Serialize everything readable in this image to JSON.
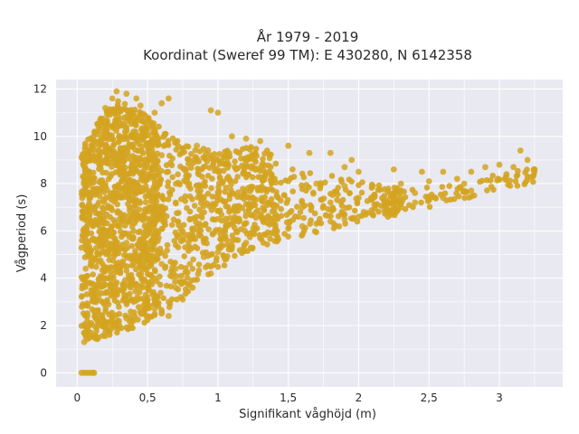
{
  "chart_data": {
    "type": "scatter",
    "title_line1": "År 1979 - 2019",
    "title_line2": "Koordinat (Sweref 99 TM): E 430280, N 6142358",
    "xlabel": "Signifikant våghöjd (m)",
    "ylabel": "Vågperiod (s)",
    "xlim": [
      -0.15,
      3.45
    ],
    "ylim": [
      -0.6,
      12.4
    ],
    "x_ticks": [
      0,
      0.5,
      1,
      1.5,
      2,
      2.5,
      3
    ],
    "x_tick_labels": [
      "0",
      "0,5",
      "1",
      "1,5",
      "2",
      "2,5",
      "3"
    ],
    "y_ticks": [
      0,
      2,
      4,
      6,
      8,
      10,
      12
    ],
    "y_tick_labels": [
      "0",
      "2",
      "4",
      "6",
      "8",
      "10",
      "12"
    ],
    "grid": true,
    "marker_color": "#d4a421",
    "background_color": "#e9e9f1",
    "points": [
      [
        0.03,
        0
      ],
      [
        0.05,
        0
      ],
      [
        0.07,
        0
      ],
      [
        0.09,
        0
      ],
      [
        0.11,
        0
      ],
      [
        0.12,
        0
      ],
      [
        0.05,
        1.3
      ],
      [
        0.08,
        1.6
      ],
      [
        0.1,
        2.1
      ],
      [
        0.12,
        2.6
      ],
      [
        0.15,
        3.2
      ],
      [
        0.06,
        4.4
      ],
      [
        0.07,
        5.5
      ],
      [
        0.05,
        6.8
      ],
      [
        0.04,
        8.3
      ],
      [
        0.06,
        9.0
      ],
      [
        0.15,
        1.5
      ],
      [
        0.2,
        1.7
      ],
      [
        0.25,
        1.9
      ],
      [
        0.3,
        2.0
      ],
      [
        0.4,
        2.2
      ],
      [
        0.5,
        2.4
      ],
      [
        0.6,
        2.5
      ],
      [
        0.65,
        2.4
      ],
      [
        0.15,
        10.5
      ],
      [
        0.2,
        11.2
      ],
      [
        0.25,
        11.6
      ],
      [
        0.28,
        11.9
      ],
      [
        0.35,
        11.8
      ],
      [
        0.42,
        11.6
      ],
      [
        0.45,
        11.3
      ],
      [
        0.55,
        11.0
      ],
      [
        0.6,
        11.4
      ],
      [
        0.65,
        11.6
      ],
      [
        0.95,
        11.1
      ],
      [
        1.0,
        11.0
      ],
      [
        0.2,
        9.0
      ],
      [
        0.3,
        9.8
      ],
      [
        0.4,
        10.2
      ],
      [
        0.5,
        9.6
      ],
      [
        0.6,
        9.2
      ],
      [
        0.75,
        9.4
      ],
      [
        0.85,
        9.6
      ],
      [
        1.1,
        10.0
      ],
      [
        1.2,
        9.9
      ],
      [
        1.3,
        9.8
      ],
      [
        1.5,
        9.6
      ],
      [
        1.65,
        9.3
      ],
      [
        1.8,
        9.3
      ],
      [
        1.9,
        8.7
      ],
      [
        1.95,
        9.0
      ],
      [
        2.0,
        8.5
      ],
      [
        0.2,
        8.0
      ],
      [
        0.35,
        7.8
      ],
      [
        0.5,
        7.5
      ],
      [
        0.7,
        7.2
      ],
      [
        0.9,
        7.3
      ],
      [
        1.1,
        7.6
      ],
      [
        1.3,
        7.8
      ],
      [
        1.5,
        8.1
      ],
      [
        1.7,
        8.0
      ],
      [
        1.9,
        7.9
      ],
      [
        2.1,
        7.9
      ],
      [
        2.3,
        8.0
      ],
      [
        2.5,
        8.1
      ],
      [
        2.7,
        8.2
      ],
      [
        2.8,
        8.5
      ],
      [
        2.9,
        8.7
      ],
      [
        3.0,
        8.8
      ],
      [
        3.1,
        8.7
      ],
      [
        3.15,
        9.4
      ],
      [
        3.2,
        9.0
      ],
      [
        3.25,
        8.6
      ],
      [
        2.75,
        8.0
      ],
      [
        2.6,
        8.5
      ],
      [
        2.45,
        8.5
      ],
      [
        2.25,
        8.6
      ],
      [
        2.2,
        7.2
      ],
      [
        0.2,
        6.0
      ],
      [
        0.35,
        5.5
      ],
      [
        0.5,
        5.0
      ],
      [
        0.6,
        4.6
      ],
      [
        0.7,
        4.4
      ],
      [
        0.8,
        4.6
      ],
      [
        0.9,
        4.9
      ],
      [
        1.0,
        5.1
      ],
      [
        1.1,
        5.3
      ],
      [
        1.2,
        5.5
      ],
      [
        1.3,
        5.7
      ],
      [
        1.4,
        5.9
      ],
      [
        1.5,
        6.1
      ],
      [
        1.6,
        6.2
      ],
      [
        1.7,
        6.3
      ],
      [
        1.8,
        6.4
      ],
      [
        1.9,
        6.5
      ],
      [
        2.0,
        6.6
      ],
      [
        2.1,
        6.7
      ],
      [
        2.2,
        6.9
      ],
      [
        2.3,
        7.0
      ],
      [
        2.4,
        7.2
      ],
      [
        2.5,
        7.3
      ],
      [
        2.6,
        7.4
      ],
      [
        0.2,
        4.0
      ],
      [
        0.3,
        3.5
      ],
      [
        0.4,
        3.0
      ],
      [
        0.5,
        2.8
      ],
      [
        0.55,
        2.7
      ],
      [
        0.45,
        2.6
      ],
      [
        0.35,
        2.3
      ],
      [
        0.25,
        2.0
      ],
      [
        0.15,
        2.5
      ],
      [
        0.1,
        3.5
      ],
      [
        0.7,
        3.6
      ],
      [
        0.75,
        3.1
      ],
      [
        0.8,
        3.7
      ],
      [
        0.95,
        4.2
      ],
      [
        1.05,
        4.8
      ],
      [
        0.65,
        3.0
      ],
      [
        0.55,
        3.3
      ],
      [
        0.3,
        6.5
      ],
      [
        0.4,
        7.0
      ],
      [
        0.6,
        6.8
      ],
      [
        0.8,
        6.5
      ],
      [
        1.0,
        6.5
      ],
      [
        1.2,
        6.8
      ],
      [
        1.4,
        7.1
      ],
      [
        1.6,
        7.0
      ],
      [
        1.8,
        7.2
      ],
      [
        2.0,
        7.4
      ],
      [
        2.4,
        7.6
      ],
      [
        2.8,
        7.7
      ],
      [
        3.05,
        8.4
      ]
    ]
  }
}
